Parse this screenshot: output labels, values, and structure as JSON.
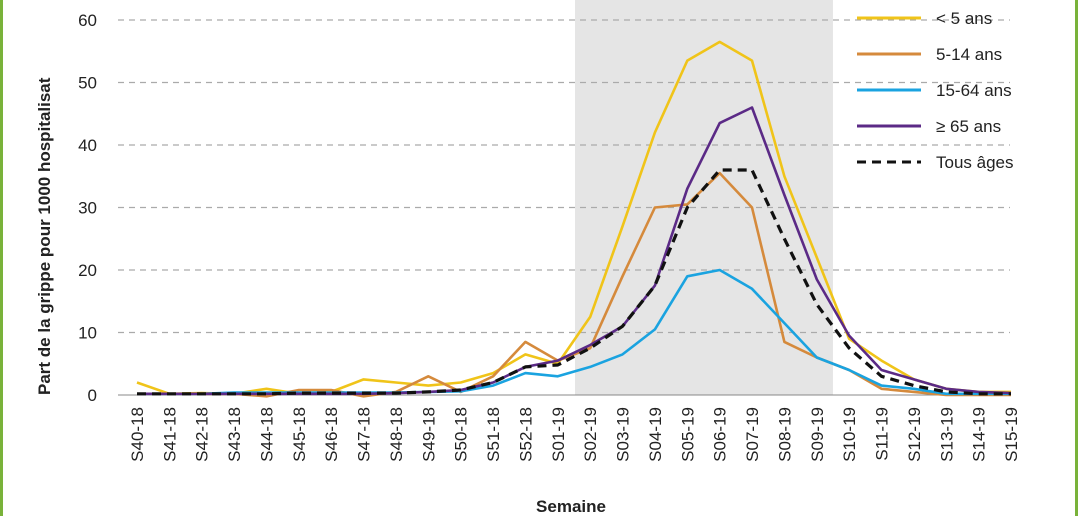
{
  "chart_data": {
    "type": "line",
    "ylabel": "Part de la grippe pour 1000 hospitalisat",
    "xlabel": "Semaine",
    "ylim": [
      0,
      60
    ],
    "yticks": [
      0,
      10,
      20,
      30,
      40,
      50,
      60
    ],
    "grid": "horizontal dashed",
    "legend_position": "top-right",
    "shaded_range": [
      "S02-19",
      "S09-19"
    ],
    "categories": [
      "S40-18",
      "S41-18",
      "S42-18",
      "S43-18",
      "S44-18",
      "S45-18",
      "S46-18",
      "S47-18",
      "S48-18",
      "S49-18",
      "S50-18",
      "S51-18",
      "S52-18",
      "S01-19",
      "S02-19",
      "S03-19",
      "S04-19",
      "S05-19",
      "S06-19",
      "S07-19",
      "S08-19",
      "S09-19",
      "S10-19",
      "S11-19",
      "S12-19",
      "S13-19",
      "S14-19",
      "S15-19"
    ],
    "series": [
      {
        "name": "< 5 ans",
        "color": "#f0c419",
        "dash": "solid",
        "values": [
          2,
          0.2,
          0.3,
          0.2,
          1,
          0.2,
          0.5,
          2.5,
          2,
          1.5,
          2,
          3.5,
          6.5,
          5,
          12.5,
          27,
          42,
          53.5,
          56.5,
          53.5,
          35,
          22,
          9,
          5.5,
          2.5,
          1,
          0.5,
          0.5
        ]
      },
      {
        "name": "5-14 ans",
        "color": "#d58a3c",
        "dash": "solid",
        "values": [
          0.2,
          0.2,
          0.2,
          0.2,
          -0.2,
          0.8,
          0.8,
          -0.2,
          0.5,
          3,
          0.5,
          3,
          8.5,
          5.5,
          7.5,
          19,
          30,
          30.5,
          35.5,
          30,
          8.5,
          6,
          4,
          1,
          0.5,
          0,
          0,
          0
        ]
      },
      {
        "name": "15-64 ans",
        "color": "#1aa3e0",
        "dash": "solid",
        "values": [
          0.2,
          0.2,
          0.2,
          0.4,
          0.4,
          0.4,
          0.4,
          0.4,
          0.4,
          0.5,
          0.6,
          1.5,
          3.5,
          3,
          4.5,
          6.5,
          10.5,
          19,
          20,
          17,
          11.5,
          6,
          4,
          1.5,
          1,
          0.2,
          0.2,
          0.2
        ]
      },
      {
        "name": "≥ 65 ans",
        "color": "#5b2a86",
        "dash": "solid",
        "values": [
          0.2,
          0.2,
          0.2,
          0.2,
          0.2,
          0.2,
          0.2,
          0.2,
          0.3,
          0.5,
          0.8,
          2,
          4.5,
          5.5,
          8,
          11,
          17.5,
          33,
          43.5,
          46,
          32,
          18.5,
          9.5,
          4,
          2.5,
          1,
          0.5,
          0.3
        ]
      },
      {
        "name": "Tous âges",
        "color": "#111111",
        "dash": "dashed",
        "values": [
          0.2,
          0.2,
          0.2,
          0.2,
          0.2,
          0.3,
          0.3,
          0.3,
          0.3,
          0.5,
          0.8,
          2,
          4.5,
          4.8,
          7.5,
          11,
          17.5,
          30,
          36,
          36,
          25,
          14.5,
          7.5,
          3,
          1.5,
          0.5,
          0.2,
          0.2
        ]
      }
    ]
  }
}
